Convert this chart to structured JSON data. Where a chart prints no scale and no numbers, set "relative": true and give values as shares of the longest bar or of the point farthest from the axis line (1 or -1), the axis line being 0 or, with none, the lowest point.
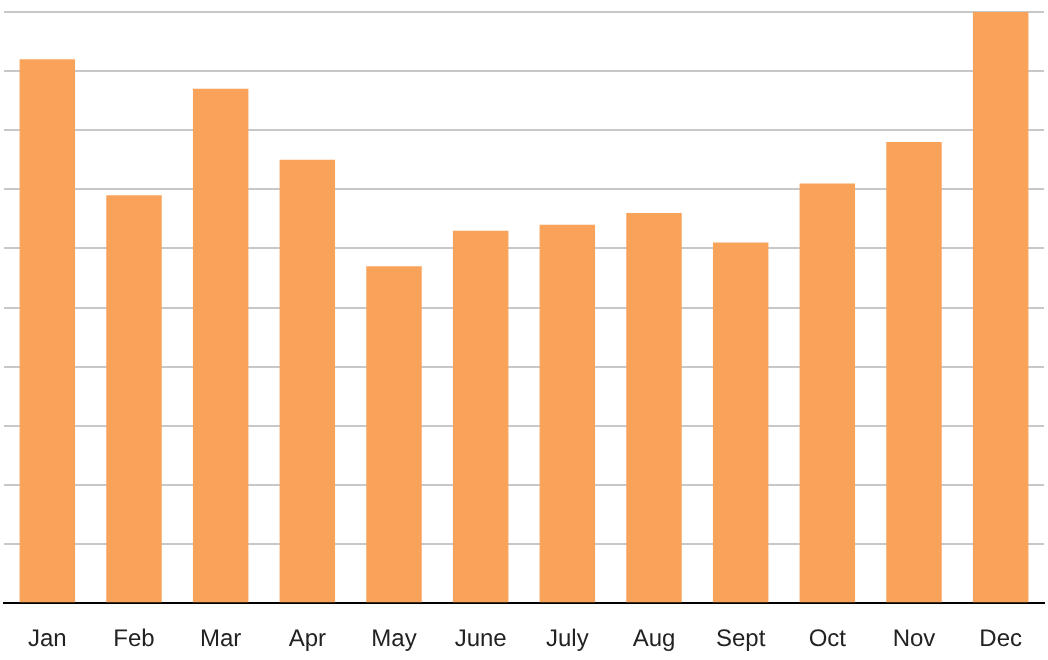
{
  "chart_data": {
    "type": "bar",
    "relative": true,
    "grid": "y",
    "legend": false,
    "categories": [
      "Jan",
      "Feb",
      "Mar",
      "Apr",
      "May",
      "June",
      "July",
      "Aug",
      "Sept",
      "Oct",
      "Nov",
      "Dec"
    ],
    "values": [
      0.92,
      0.69,
      0.87,
      0.75,
      0.57,
      0.63,
      0.64,
      0.66,
      0.61,
      0.71,
      0.78,
      1
    ],
    "color": "#f9a35a"
  }
}
